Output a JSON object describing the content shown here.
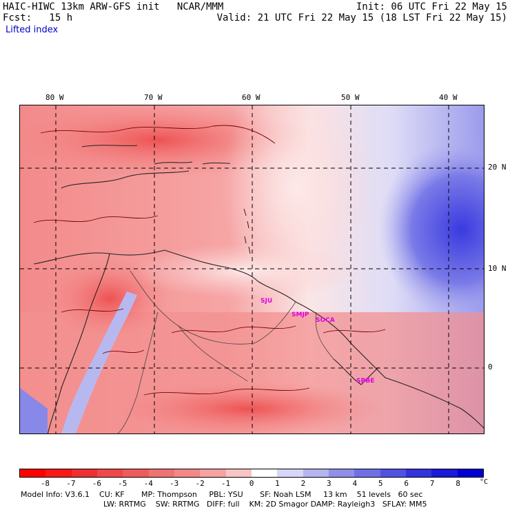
{
  "header": {
    "title_left": "HAIC-HIWC 13km ARW-GFS init   NCAR/MMM",
    "fcst": "Fcst:   15 h",
    "subtitle": "Lifted index",
    "init": "Init: 06 UTC Fri 22 May 15",
    "valid": "Valid: 21 UTC Fri 22 May 15 (18 LST Fri 22 May 15)"
  },
  "map": {
    "lon_labels": [
      "80 W",
      "70 W",
      "60 W",
      "50 W",
      "40 W"
    ],
    "lat_labels": [
      "20 N",
      "10 N",
      "0"
    ],
    "sites": [
      "SJU",
      "SMJP",
      "SOCA",
      "SBBE"
    ]
  },
  "colorbar": {
    "ticks": [
      "-8",
      "-7",
      "-6",
      "-5",
      "-4",
      "-3",
      "-2",
      "-1",
      "0",
      "1",
      "2",
      "3",
      "4",
      "5",
      "6",
      "7",
      "8"
    ],
    "unit": "°C",
    "colors": [
      "#ff0000",
      "#f81818",
      "#f03030",
      "#ef4848",
      "#ef5c5c",
      "#f07272",
      "#f48888",
      "#f6a2a2",
      "#f9c4c4",
      "#ffffff",
      "#d6d6f6",
      "#b4b4f0",
      "#9090ea",
      "#7070e6",
      "#5252e2",
      "#3434de",
      "#1a1ad8",
      "#0000d2"
    ]
  },
  "footer": {
    "line1": "Model Info: V3.6.1    CU: KF       MP: Thompson     PBL: YSU       SF: Noah LSM     13 km    51 levels   60 sec",
    "line2": "LW: RRTMG    SW: RRTMG   DIFF: full    KM: 2D Smagor DAMP: Rayleigh3   SFLAY: MM5"
  }
}
